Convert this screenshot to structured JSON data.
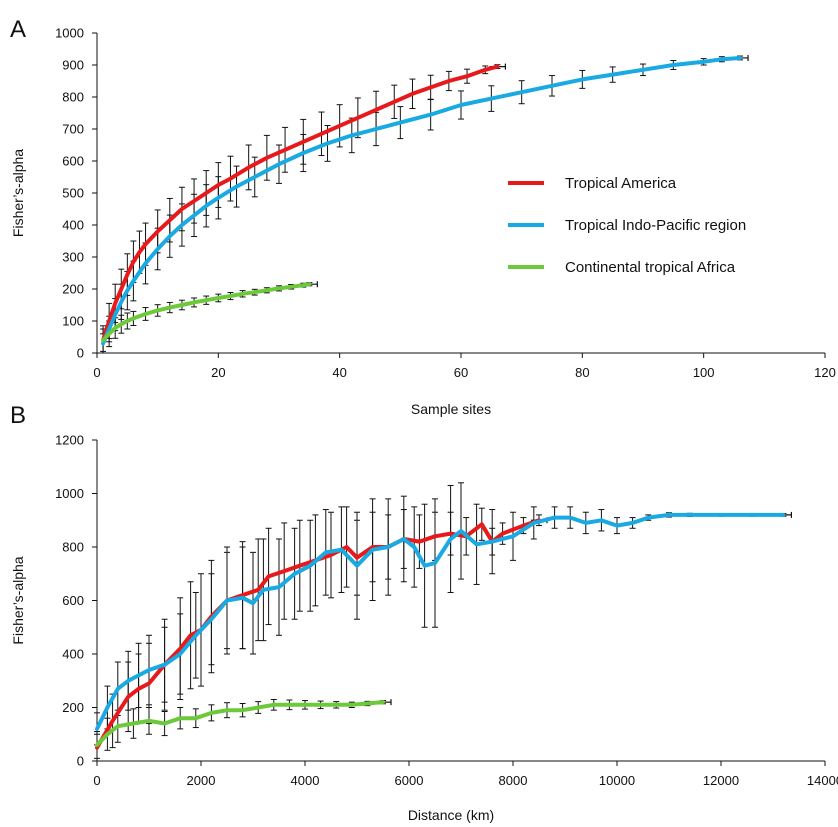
{
  "figure": {
    "panels": [
      {
        "letter": "A"
      },
      {
        "letter": "B"
      }
    ]
  },
  "chart_data": [
    {
      "panel": "A",
      "type": "line",
      "title": "",
      "xlabel": "Sample sites",
      "ylabel": "Fisher’s-alpha",
      "xlim": [
        0,
        120
      ],
      "ylim": [
        0,
        1000
      ],
      "xticks": [
        0,
        20,
        40,
        60,
        80,
        100,
        120
      ],
      "yticks": [
        0,
        100,
        200,
        300,
        400,
        500,
        600,
        700,
        800,
        900,
        1000
      ],
      "grid": false,
      "error_bars": true,
      "legend_position": "right",
      "series": [
        {
          "name": "Tropical America",
          "color": "#e8191b",
          "x": [
            1,
            2,
            3,
            4,
            5,
            6,
            7,
            8,
            10,
            12,
            14,
            16,
            18,
            20,
            22,
            25,
            28,
            31,
            34,
            37,
            40,
            43,
            46,
            49,
            52,
            55,
            58,
            61,
            64,
            66
          ],
          "y": [
            40,
            100,
            155,
            200,
            245,
            285,
            315,
            340,
            380,
            415,
            450,
            475,
            500,
            525,
            545,
            580,
            610,
            635,
            660,
            685,
            710,
            735,
            760,
            785,
            810,
            830,
            850,
            865,
            885,
            895
          ],
          "err": [
            35,
            55,
            60,
            62,
            65,
            65,
            66,
            66,
            67,
            68,
            68,
            69,
            70,
            70,
            70,
            70,
            70,
            70,
            70,
            68,
            66,
            62,
            58,
            52,
            46,
            38,
            30,
            22,
            12,
            6
          ]
        },
        {
          "name": "Tropical Indo-Pacific region",
          "color": "#19a9e3",
          "x": [
            1,
            2,
            3,
            4,
            5,
            6,
            8,
            10,
            12,
            14,
            16,
            18,
            20,
            23,
            26,
            30,
            34,
            38,
            42,
            46,
            50,
            55,
            60,
            65,
            70,
            75,
            80,
            85,
            90,
            95,
            100,
            103,
            106
          ],
          "y": [
            30,
            75,
            120,
            160,
            195,
            225,
            280,
            325,
            365,
            400,
            430,
            460,
            485,
            520,
            550,
            590,
            625,
            655,
            680,
            700,
            720,
            745,
            775,
            795,
            815,
            835,
            855,
            870,
            885,
            900,
            910,
            918,
            922
          ],
          "err": [
            30,
            40,
            50,
            55,
            60,
            62,
            64,
            65,
            66,
            66,
            66,
            66,
            66,
            64,
            62,
            60,
            58,
            56,
            54,
            52,
            50,
            48,
            44,
            40,
            36,
            32,
            28,
            24,
            18,
            14,
            10,
            8,
            6
          ]
        },
        {
          "name": "Continental tropical Africa",
          "color": "#6cc93a",
          "x": [
            1,
            2,
            3,
            4,
            5,
            6,
            8,
            10,
            12,
            14,
            16,
            18,
            20,
            22,
            24,
            26,
            28,
            30,
            32,
            34,
            35
          ],
          "y": [
            40,
            60,
            78,
            90,
            100,
            108,
            122,
            133,
            142,
            150,
            158,
            165,
            172,
            178,
            185,
            190,
            196,
            202,
            207,
            212,
            215
          ],
          "err": [
            45,
            40,
            32,
            28,
            25,
            22,
            20,
            18,
            16,
            15,
            14,
            13,
            12,
            11,
            10,
            9,
            8,
            8,
            7,
            6,
            5
          ]
        }
      ]
    },
    {
      "panel": "B",
      "type": "line",
      "title": "",
      "xlabel": "Distance (km)",
      "ylabel": "Fisher’s-alpha",
      "xlim": [
        0,
        14000
      ],
      "ylim": [
        0,
        1200
      ],
      "xticks": [
        0,
        2000,
        4000,
        6000,
        8000,
        10000,
        12000,
        14000
      ],
      "yticks": [
        0,
        200,
        400,
        600,
        800,
        1000,
        1200
      ],
      "grid": false,
      "error_bars": true,
      "series": [
        {
          "name": "Tropical America",
          "color": "#e8191b",
          "x": [
            0,
            300,
            600,
            800,
            1000,
            1300,
            1600,
            1800,
            2000,
            2200,
            2500,
            2800,
            3100,
            3300,
            3600,
            3900,
            4200,
            4500,
            4800,
            5000,
            5300,
            5600,
            5900,
            6200,
            6500,
            6800,
            7100,
            7400,
            7600,
            7800,
            8200,
            8500
          ],
          "y": [
            50,
            150,
            240,
            270,
            290,
            360,
            420,
            470,
            490,
            540,
            600,
            620,
            640,
            690,
            710,
            730,
            750,
            770,
            800,
            760,
            800,
            800,
            830,
            820,
            840,
            850,
            840,
            885,
            820,
            850,
            880,
            900
          ],
          "err": [
            50,
            100,
            130,
            130,
            150,
            170,
            190,
            200,
            210,
            210,
            200,
            200,
            190,
            180,
            180,
            170,
            170,
            160,
            150,
            140,
            130,
            120,
            110,
            100,
            90,
            80,
            70,
            60,
            50,
            40,
            30,
            20
          ]
        },
        {
          "name": "Tropical Indo-Pacific region",
          "color": "#19a9e3",
          "x": [
            0,
            200,
            400,
            600,
            800,
            1000,
            1300,
            1600,
            1900,
            2200,
            2500,
            2800,
            3000,
            3200,
            3500,
            3800,
            4100,
            4400,
            4700,
            5000,
            5300,
            5600,
            5900,
            6100,
            6300,
            6500,
            6800,
            7000,
            7300,
            7600,
            8000,
            8400,
            8800,
            9100,
            9400,
            9700,
            10000,
            10300,
            10600,
            11000,
            11400,
            12000,
            12600,
            13200
          ],
          "y": [
            120,
            200,
            270,
            300,
            320,
            340,
            360,
            400,
            470,
            530,
            600,
            610,
            590,
            640,
            650,
            700,
            730,
            780,
            790,
            730,
            790,
            800,
            830,
            800,
            730,
            740,
            830,
            860,
            810,
            820,
            840,
            890,
            910,
            910,
            890,
            900,
            880,
            890,
            910,
            920,
            920,
            920,
            920,
            920
          ],
          "err": [
            60,
            80,
            100,
            110,
            120,
            130,
            140,
            150,
            160,
            170,
            180,
            190,
            190,
            190,
            180,
            170,
            170,
            160,
            160,
            200,
            190,
            180,
            160,
            150,
            230,
            240,
            200,
            180,
            150,
            120,
            90,
            60,
            40,
            40,
            40,
            40,
            30,
            20,
            10,
            8,
            6,
            5,
            5,
            5
          ]
        },
        {
          "name": "Continental tropical Africa",
          "color": "#6cc93a",
          "x": [
            0,
            200,
            400,
            700,
            1000,
            1300,
            1600,
            1900,
            2200,
            2500,
            2800,
            3100,
            3400,
            3700,
            4000,
            4300,
            4600,
            4900,
            5200,
            5500
          ],
          "y": [
            60,
            100,
            130,
            140,
            150,
            140,
            160,
            160,
            180,
            190,
            190,
            200,
            210,
            210,
            210,
            210,
            210,
            210,
            215,
            220
          ],
          "err": [
            50,
            60,
            60,
            55,
            50,
            45,
            40,
            35,
            30,
            28,
            25,
            22,
            20,
            18,
            16,
            14,
            12,
            10,
            8,
            6
          ]
        }
      ]
    }
  ]
}
